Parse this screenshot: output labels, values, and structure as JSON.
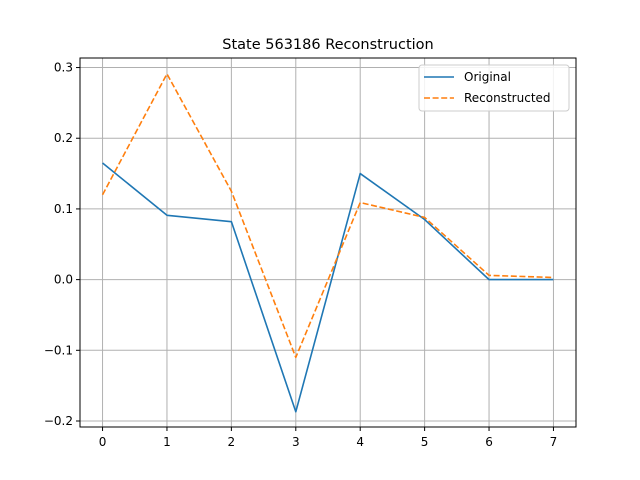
{
  "chart_data": {
    "type": "line",
    "title": "State 563186 Reconstruction",
    "xlabel": "",
    "ylabel": "",
    "x": [
      0,
      1,
      2,
      3,
      4,
      5,
      6,
      7
    ],
    "xlim": [
      -0.35,
      7.35
    ],
    "ylim": [
      -0.2085,
      0.3135
    ],
    "xticks": [
      0,
      1,
      2,
      3,
      4,
      5,
      6,
      7
    ],
    "yticks": [
      -0.2,
      -0.1,
      0.0,
      0.1,
      0.2,
      0.3
    ],
    "ytick_labels": [
      "−0.2",
      "−0.1",
      "0.0",
      "0.1",
      "0.2",
      "0.3"
    ],
    "grid": true,
    "legend_position": "top-right",
    "series": [
      {
        "name": "Original",
        "color": "#1f77b4",
        "linestyle": "solid",
        "values": [
          0.165,
          0.091,
          0.082,
          -0.187,
          0.15,
          0.085,
          0.0,
          0.0
        ]
      },
      {
        "name": "Reconstructed",
        "color": "#ff7f0e",
        "linestyle": "dashed",
        "values": [
          0.12,
          0.291,
          0.125,
          -0.11,
          0.109,
          0.088,
          0.006,
          0.003
        ]
      }
    ]
  }
}
